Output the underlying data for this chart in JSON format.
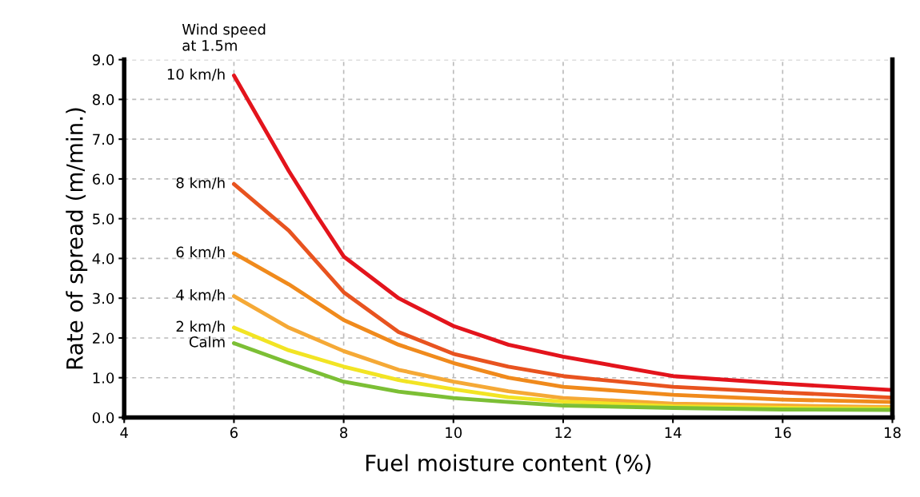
{
  "chart_data": {
    "type": "line",
    "xlabel": "Fuel moisture content (%)",
    "ylabel": "Rate of spread (m/min.)",
    "legend_title": "Wind speed\nat 1.5m",
    "x": [
      6,
      7,
      8,
      9,
      10,
      11,
      12,
      14,
      16,
      18
    ],
    "series": [
      {
        "name": "10 km/h",
        "color": "#e3141c",
        "x": [
          6,
          6.5,
          7,
          7.5,
          8,
          9,
          10,
          11,
          12,
          14,
          16,
          18
        ],
        "values": [
          8.6,
          7.4,
          6.2,
          5.1,
          4.05,
          3.0,
          2.3,
          1.83,
          1.53,
          1.04,
          0.85,
          0.69
        ]
      },
      {
        "name": "8 km/h",
        "color": "#e8531f",
        "values": [
          5.87,
          4.7,
          3.15,
          2.15,
          1.6,
          1.28,
          1.04,
          0.77,
          0.63,
          0.5
        ]
      },
      {
        "name": "6 km/h",
        "color": "#f08a1c",
        "values": [
          4.13,
          3.35,
          2.45,
          1.83,
          1.37,
          1.0,
          0.77,
          0.57,
          0.45,
          0.39
        ]
      },
      {
        "name": "4 km/h",
        "color": "#f5a936",
        "values": [
          3.05,
          2.26,
          1.67,
          1.2,
          0.9,
          0.66,
          0.49,
          0.35,
          0.3,
          0.26
        ]
      },
      {
        "name": "2 km/h",
        "color": "#f2e424",
        "values": [
          2.26,
          1.69,
          1.28,
          0.94,
          0.71,
          0.51,
          0.4,
          0.28,
          0.24,
          0.22
        ]
      },
      {
        "name": "Calm",
        "color": "#7cbf35",
        "values": [
          1.87,
          1.37,
          0.9,
          0.65,
          0.49,
          0.39,
          0.3,
          0.24,
          0.2,
          0.19
        ]
      }
    ],
    "xlim": [
      4,
      18
    ],
    "ylim": [
      0,
      9
    ],
    "xticks": [
      4,
      6,
      8,
      10,
      12,
      14,
      16,
      18
    ],
    "yticks": [
      {
        "value": 0,
        "label": "0.0"
      },
      {
        "value": 1,
        "label": "1.0"
      },
      {
        "value": 2,
        "label": "2.0"
      },
      {
        "value": 3,
        "label": "3.0"
      },
      {
        "value": 4,
        "label": "4.0"
      },
      {
        "value": 5,
        "label": "5.0"
      },
      {
        "value": 6,
        "label": "6.0"
      },
      {
        "value": 7,
        "label": "7.0"
      },
      {
        "value": 8,
        "label": "8.0"
      },
      {
        "value": 9,
        "label": "9.0"
      }
    ],
    "grid": true,
    "legend": false,
    "marker": "none",
    "line_style": "solid"
  }
}
